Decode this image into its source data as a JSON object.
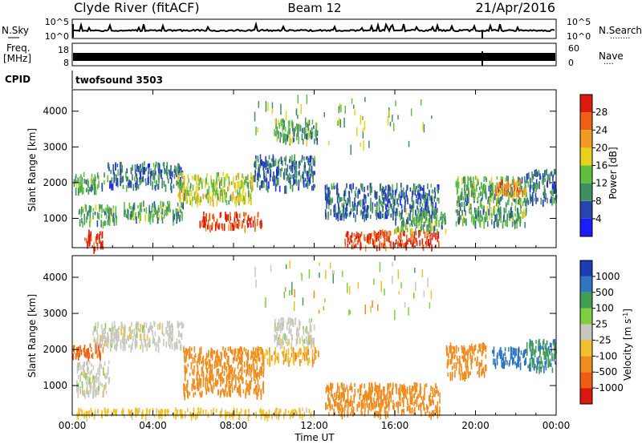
{
  "header": {
    "station": "Clyde River (fitACF)",
    "beam": "Beam 12",
    "date": "21/Apr/2016"
  },
  "nsky_panel": {
    "left_label": "N.Sky",
    "left_ticks": [
      "10^5",
      "10^0"
    ],
    "right_ticks": [
      "10^5",
      "10^0"
    ],
    "right_label": "N.Search",
    "right_dots": "........"
  },
  "freq_panel": {
    "left_label_1": "Freq.",
    "left_label_2": "[MHz]",
    "left_ticks": [
      "18",
      "8"
    ],
    "right_ticks": [
      "60",
      "0"
    ],
    "right_label": "Nave",
    "right_dots": "...."
  },
  "cpid_panel": {
    "label": "CPID",
    "value": "twofsound 3503"
  },
  "power_panel": {
    "ylabel": "Slant Range [km]",
    "yticks": [
      "1000",
      "2000",
      "3000",
      "4000"
    ],
    "colorbar_label": "Power [dB]",
    "colorbar_ticks": [
      "4",
      "8",
      "12",
      "16",
      "20",
      "24",
      "28"
    ],
    "colorbar_colors": [
      "#1b1bff",
      "#2745b0",
      "#3f8f63",
      "#5fbf3f",
      "#e8d21e",
      "#f39a22",
      "#f06014",
      "#dc1a0f"
    ]
  },
  "velocity_panel": {
    "ylabel": "Slant Range [km]",
    "yticks": [
      "1000",
      "2000",
      "3000",
      "4000"
    ],
    "colorbar_label": "Velocity [m s",
    "colorbar_sup": "-1",
    "colorbar_label_end": "]",
    "colorbar_ticks": [
      "1000",
      "500",
      "100",
      "25",
      "-25",
      "-100",
      "-500",
      "-1000"
    ],
    "colorbar_colors": [
      "#1a3fb5",
      "#2f75c0",
      "#3f9e4f",
      "#7fcf3f",
      "#c8c8c0",
      "#f2c02a",
      "#f08c1e",
      "#ee5d12",
      "#d81910"
    ]
  },
  "x_axis": {
    "label": "Time UT",
    "ticks": [
      "00:00",
      "04:00",
      "08:00",
      "12:00",
      "16:00",
      "20:00",
      "00:00"
    ]
  },
  "chart_data": [
    {
      "type": "heatmap",
      "title": "Power [dB]",
      "xlabel": "Time UT",
      "ylabel": "Slant Range [km]",
      "xlim_hours": [
        0,
        24
      ],
      "ylim_km": [
        180,
        4600
      ],
      "color_scale": [
        0,
        32
      ],
      "regions": [
        {
          "t0": 0.0,
          "t1": 1.6,
          "r0": 1800,
          "r1": 2300,
          "value": 12
        },
        {
          "t0": 0.3,
          "t1": 2.2,
          "r0": 900,
          "r1": 1400,
          "value": 12
        },
        {
          "t0": 0.6,
          "t1": 1.5,
          "r0": 200,
          "r1": 700,
          "value": 28
        },
        {
          "t0": 1.7,
          "t1": 5.5,
          "r0": 1900,
          "r1": 2600,
          "value": 8
        },
        {
          "t0": 2.5,
          "t1": 5.5,
          "r0": 1000,
          "r1": 1500,
          "value": 12
        },
        {
          "t0": 5.2,
          "t1": 9.0,
          "r0": 1500,
          "r1": 2300,
          "value": 16
        },
        {
          "t0": 6.3,
          "t1": 9.5,
          "r0": 800,
          "r1": 1200,
          "value": 28
        },
        {
          "t0": 9.0,
          "t1": 12.0,
          "r0": 1900,
          "r1": 2800,
          "value": 8
        },
        {
          "t0": 10.0,
          "t1": 12.2,
          "r0": 3200,
          "r1": 3800,
          "value": 12
        },
        {
          "t0": 12.5,
          "t1": 18.2,
          "r0": 1100,
          "r1": 2000,
          "value": 8
        },
        {
          "t0": 13.5,
          "t1": 18.2,
          "r0": 250,
          "r1": 700,
          "value": 28
        },
        {
          "t0": 16.0,
          "t1": 18.5,
          "r0": 700,
          "r1": 1300,
          "value": 12
        },
        {
          "t0": 19.0,
          "t1": 22.5,
          "r0": 900,
          "r1": 2200,
          "value": 12
        },
        {
          "t0": 21.0,
          "t1": 22.5,
          "r0": 1700,
          "r1": 2100,
          "value": 24
        },
        {
          "t0": 22.5,
          "t1": 24.0,
          "r0": 1500,
          "r1": 2400,
          "value": 8
        }
      ]
    },
    {
      "type": "heatmap",
      "title": "Velocity [m s-1]",
      "xlabel": "Time UT",
      "ylabel": "Slant Range [km]",
      "xlim_hours": [
        0,
        24
      ],
      "ylim_km": [
        180,
        4600
      ],
      "color_scale": [
        -1000,
        1000
      ],
      "regions": [
        {
          "t0": 0.0,
          "t1": 1.5,
          "r0": 1800,
          "r1": 2200,
          "value": -500
        },
        {
          "t0": 0.2,
          "t1": 1.8,
          "r0": 800,
          "r1": 1700,
          "value": 0
        },
        {
          "t0": 1.0,
          "t1": 5.5,
          "r0": 2100,
          "r1": 2800,
          "value": 0
        },
        {
          "t0": 5.5,
          "t1": 9.5,
          "r0": 800,
          "r1": 2100,
          "value": -300
        },
        {
          "t0": 9.0,
          "t1": 12.2,
          "r0": 1700,
          "r1": 2100,
          "value": -100
        },
        {
          "t0": 10.0,
          "t1": 12.0,
          "r0": 2200,
          "r1": 2900,
          "value": 0
        },
        {
          "t0": 12.5,
          "t1": 18.2,
          "r0": 250,
          "r1": 1100,
          "value": -300
        },
        {
          "t0": 18.5,
          "t1": 20.5,
          "r0": 1300,
          "r1": 2200,
          "value": -300
        },
        {
          "t0": 20.8,
          "t1": 22.5,
          "r0": 1600,
          "r1": 2100,
          "value": 700
        },
        {
          "t0": 22.5,
          "t1": 24.0,
          "r0": 1500,
          "r1": 2300,
          "value": 500
        },
        {
          "t0": 0.0,
          "t1": 12.0,
          "r0": 200,
          "r1": 400,
          "value": -50
        }
      ]
    }
  ]
}
